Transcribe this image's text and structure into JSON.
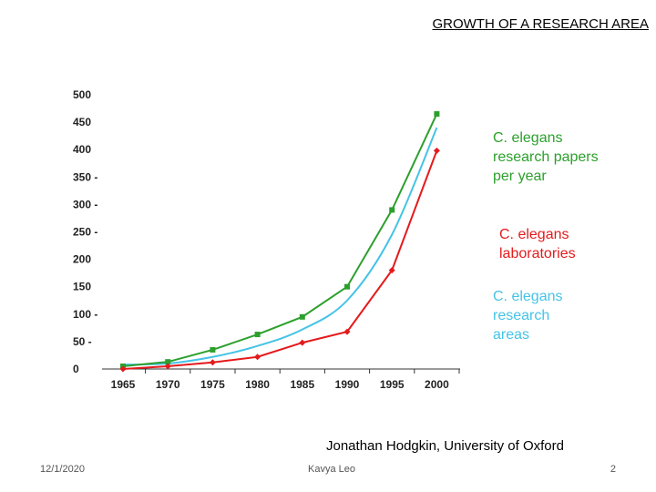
{
  "slide": {
    "title": "GROWTH OF A RESEARCH AREA",
    "credit": "Jonathan Hodgkin, University of Oxford",
    "footer_date": "12/1/2020",
    "footer_author": "Kavya Leo",
    "footer_page": "2"
  },
  "chart_data": {
    "type": "line",
    "title": "",
    "xlabel": "",
    "ylabel": "",
    "x": [
      "1965",
      "1970",
      "1975",
      "1980",
      "1985",
      "1990",
      "1995",
      "2000"
    ],
    "ylim": [
      0,
      500
    ],
    "yticks": [
      "0",
      "50 -",
      "100 -",
      "150",
      "200",
      "250 -",
      "300 -",
      "350 -",
      "400",
      "450",
      "500"
    ],
    "legend_position": "right",
    "series": [
      {
        "name": "papers",
        "legend": [
          "C. elegans",
          "research papers",
          "per year"
        ],
        "color": "#2ca02c",
        "marker": "square",
        "values": [
          5,
          13,
          35,
          63,
          95,
          150,
          290,
          465
        ]
      },
      {
        "name": "laboratories",
        "legend": [
          "C. elegans",
          "laboratories"
        ],
        "color": "#e41a1c",
        "marker": "diamond",
        "values": [
          0,
          5,
          12,
          22,
          48,
          68,
          180,
          398
        ]
      },
      {
        "name": "areas",
        "legend": [
          "C. elegans",
          "research",
          "areas"
        ],
        "color": "#45c3e6",
        "marker": "none",
        "values": [
          8,
          10,
          22,
          42,
          72,
          125,
          245,
          440
        ]
      }
    ]
  }
}
